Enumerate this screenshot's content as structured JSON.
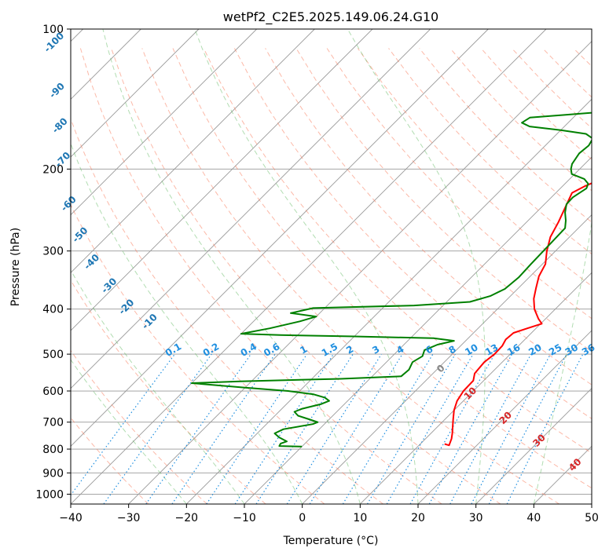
{
  "chart_data": {
    "type": "line",
    "title": "wetPf2_C2E5.2025.149.06.24.G10",
    "xlabel": "Temperature (°C)",
    "ylabel": "Pressure (hPa)",
    "xlim": [
      -40,
      50
    ],
    "ylim": [
      1050,
      100
    ],
    "y_scale": "log",
    "grid": true,
    "x_ticks": [
      -40,
      -30,
      -20,
      -10,
      0,
      10,
      20,
      30,
      40,
      50
    ],
    "y_ticks": [
      100,
      200,
      300,
      400,
      500,
      600,
      700,
      800,
      900,
      1000
    ],
    "x_tick_labels": [
      "−40",
      "−30",
      "−20",
      "−10",
      "0",
      "10",
      "20",
      "30",
      "40",
      "50"
    ],
    "y_tick_labels": [
      "100",
      "200",
      "300",
      "400",
      "500",
      "600",
      "700",
      "800",
      "900",
      "1000"
    ],
    "colors": {
      "temperature": "#ff0000",
      "dewpoint": "#008000",
      "dry_adiabats": "#fa8060",
      "moist_adiabats": "#66bb66",
      "mixing_ratio": "#1f8fe0",
      "isotherm_label": "#1f77b4",
      "moist_label": "#d62728",
      "grid": "#999999"
    },
    "series": [
      {
        "name": "Temperature",
        "points": [
          [
            14.2,
            780
          ],
          [
            15.2,
            785
          ],
          [
            14.5,
            760
          ],
          [
            13.7,
            740
          ],
          [
            12.8,
            720
          ],
          [
            11.4,
            690
          ],
          [
            10,
            660
          ],
          [
            8.9,
            630
          ],
          [
            8.3,
            600
          ],
          [
            8.2,
            570
          ],
          [
            7.2,
            550
          ],
          [
            6.9,
            520
          ],
          [
            7.3,
            500
          ],
          [
            7.2,
            480
          ],
          [
            6.7,
            465
          ],
          [
            6.9,
            450
          ],
          [
            8.5,
            440
          ],
          [
            10.2,
            430
          ],
          [
            8.8,
            420
          ],
          [
            6.4,
            400
          ],
          [
            4.5,
            380
          ],
          [
            3,
            360
          ],
          [
            1.5,
            340
          ],
          [
            0.5,
            320
          ],
          [
            -1.5,
            300
          ],
          [
            -3.3,
            280
          ],
          [
            -4.5,
            260
          ],
          [
            -6,
            240
          ],
          [
            -7.2,
            225
          ],
          [
            -6.2,
            218
          ],
          [
            -4.5,
            210
          ],
          [
            -2.5,
            203
          ],
          [
            -0.8,
            197
          ],
          [
            1.2,
            190
          ],
          [
            3.4,
            183
          ],
          [
            6,
            175
          ],
          [
            8.2,
            168
          ],
          [
            9.5,
            162
          ],
          [
            10.3,
            155
          ],
          [
            10.7,
            148
          ],
          [
            11.5,
            140
          ],
          [
            13,
            132
          ],
          [
            14.8,
            125
          ],
          [
            16.8,
            118
          ],
          [
            18.8,
            112
          ],
          [
            20.8,
            106
          ],
          [
            22.5,
            100
          ]
        ]
      },
      {
        "name": "Dewpoint",
        "points": [
          [
            -10,
            790
          ],
          [
            -14,
            788
          ],
          [
            -14.2,
            778
          ],
          [
            -13.5,
            770
          ],
          [
            -15.5,
            755
          ],
          [
            -17,
            740
          ],
          [
            -16.2,
            725
          ],
          [
            -12,
            707
          ],
          [
            -11.5,
            700
          ],
          [
            -13.5,
            690
          ],
          [
            -16,
            678
          ],
          [
            -17.3,
            665
          ],
          [
            -16.5,
            655
          ],
          [
            -14,
            640
          ],
          [
            -13.2,
            630
          ],
          [
            -14.5,
            620
          ],
          [
            -17,
            610
          ],
          [
            -22,
            600
          ],
          [
            -30,
            590
          ],
          [
            -40,
            577
          ],
          [
            -32,
            572
          ],
          [
            -15,
            565
          ],
          [
            -5,
            558
          ],
          [
            -4.8,
            540
          ],
          [
            -5.5,
            520
          ],
          [
            -4.8,
            505
          ],
          [
            -5.5,
            490
          ],
          [
            -4.2,
            477
          ],
          [
            -2,
            468
          ],
          [
            -6,
            462
          ],
          [
            -20,
            458
          ],
          [
            -33,
            455
          ],
          [
            -40,
            452
          ],
          [
            -36,
            440
          ],
          [
            -32,
            425
          ],
          [
            -30,
            415
          ],
          [
            -35,
            408
          ],
          [
            -32,
            398
          ],
          [
            -15,
            393
          ],
          [
            -6,
            386
          ],
          [
            -3.5,
            375
          ],
          [
            -2.2,
            362
          ],
          [
            -1.8,
            342
          ],
          [
            -2,
            320
          ],
          [
            -2.1,
            300
          ],
          [
            -2.2,
            282
          ],
          [
            -2.3,
            268
          ],
          [
            -3.5,
            258
          ],
          [
            -5,
            248
          ],
          [
            -6.2,
            238
          ],
          [
            -6.3,
            230
          ],
          [
            -5.5,
            220
          ],
          [
            -6,
            215
          ],
          [
            -7.5,
            210
          ],
          [
            -10.5,
            205
          ],
          [
            -11.5,
            200
          ],
          [
            -12.2,
            195
          ],
          [
            -12.8,
            185
          ],
          [
            -12.5,
            178
          ],
          [
            -13,
            172
          ],
          [
            -15,
            168
          ],
          [
            -20,
            165
          ],
          [
            -26,
            162
          ],
          [
            -28,
            159
          ],
          [
            -27.5,
            155
          ],
          [
            -22,
            153
          ],
          [
            -14,
            150
          ],
          [
            -10,
            145
          ],
          [
            -9,
            140
          ],
          [
            -7.5,
            132
          ],
          [
            -6.5,
            128
          ],
          [
            -5.8,
            122
          ],
          [
            -5,
            118
          ],
          [
            -3.5,
            114
          ],
          [
            -2,
            110
          ],
          [
            -1,
            106
          ],
          [
            -0.8,
            100
          ]
        ]
      }
    ],
    "isotherm_labels": [
      "-100",
      "-90",
      "-80",
      "-70",
      "-60",
      "-50",
      "-40",
      "-30",
      "-20",
      "-10"
    ],
    "mixing_ratio_labels": [
      "0.1",
      "0.2",
      "0.4",
      "0.6",
      "1",
      "1.5",
      "2",
      "3",
      "4",
      "6",
      "8",
      "10",
      "13",
      "16",
      "20",
      "25",
      "30",
      "36"
    ],
    "moist_labels": [
      "0",
      "10",
      "20",
      "30",
      "40"
    ]
  }
}
